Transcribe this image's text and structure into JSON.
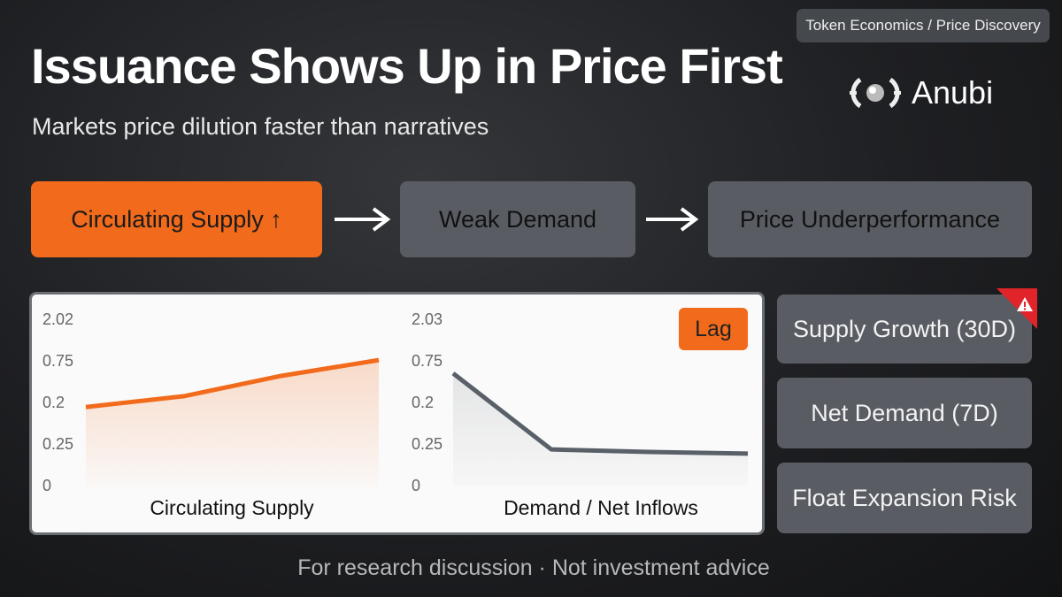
{
  "tag": "Token Economics / Price Discovery",
  "title": "Issuance Shows Up in Price First",
  "subtitle": "Markets price dilution faster than narratives",
  "logo": "Anubi",
  "flow": [
    "Circulating Supply ↑",
    "Weak Demand",
    "Price Underperformance"
  ],
  "badge": "Lag",
  "cards": [
    "Supply Growth (30D)",
    "Net Demand (7D)",
    "Float Expansion Risk"
  ],
  "footer": "For research discussion · Not investment advice",
  "chart_data": [
    {
      "type": "line",
      "x_label": "Circulating Supply",
      "categories": [
        null,
        null,
        null,
        null
      ],
      "series": [
        {
          "color": "#f26a1b",
          "values": [
            1.91,
            2.17,
            2.66,
            3.04
          ]
        }
      ],
      "ylim": [
        0,
        4
      ],
      "yticks": [
        {
          "value": 0,
          "label": "0"
        },
        {
          "value": 1,
          "label": "0.25"
        },
        {
          "value": 2,
          "label": "0.2"
        },
        {
          "value": 3,
          "label": "0.75"
        },
        {
          "value": 4,
          "label": "2.02"
        }
      ],
      "grid": false
    },
    {
      "type": "line",
      "x_label": "Demand / Net Inflows",
      "categories": [
        null,
        null,
        null,
        null
      ],
      "series": [
        {
          "color": "#5a6068",
          "values": [
            2.72,
            0.89,
            0.83,
            0.79
          ]
        }
      ],
      "ylim": [
        0,
        4
      ],
      "yticks": [
        {
          "value": 0,
          "label": "0"
        },
        {
          "value": 1,
          "label": "0.25"
        },
        {
          "value": 2,
          "label": "0.2"
        },
        {
          "value": 3,
          "label": "0.75"
        },
        {
          "value": 4,
          "label": "2.03"
        }
      ],
      "grid": false
    }
  ]
}
